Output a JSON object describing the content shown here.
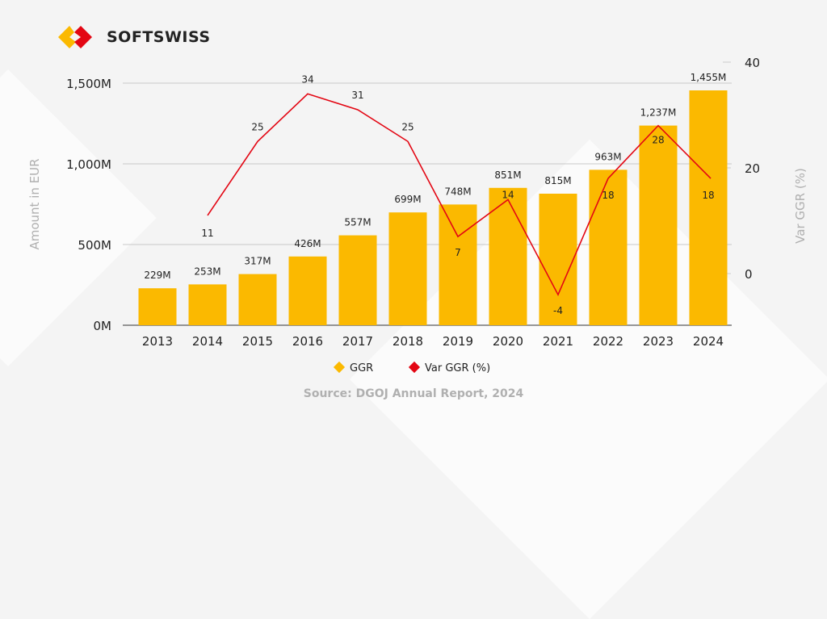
{
  "brand": {
    "name": "SOFTSWISS"
  },
  "colors": {
    "bar": "#FBB900",
    "line": "#E30613",
    "grid": "#c8c8c8",
    "axis_title": "#b0b0b0",
    "source": "#b0b0b0"
  },
  "chart_data": {
    "type": "bar+line",
    "categories": [
      "2013",
      "2014",
      "2015",
      "2016",
      "2017",
      "2018",
      "2019",
      "2020",
      "2021",
      "2022",
      "2023",
      "2024"
    ],
    "series": [
      {
        "name": "GGR",
        "type": "bar",
        "axis": "left",
        "values": [
          229,
          253,
          317,
          426,
          557,
          699,
          748,
          851,
          815,
          963,
          1237,
          1455
        ],
        "labels": [
          "229M",
          "253M",
          "317M",
          "426M",
          "557M",
          "699M",
          "748M",
          "851M",
          "815M",
          "963M",
          "1,237M",
          "1,455M"
        ]
      },
      {
        "name": "Var GGR (%)",
        "type": "line",
        "axis": "right",
        "values": [
          null,
          11,
          25,
          34,
          31,
          25,
          7,
          14,
          -4,
          18,
          28,
          18
        ],
        "labels": [
          "",
          "11",
          "25",
          "34",
          "31",
          "25",
          "7",
          "14",
          "-4",
          "18",
          "28",
          "18"
        ]
      }
    ],
    "ylabel_left": "Amount in EUR",
    "ylabel_right": "Var GGR (%)",
    "ylim_left": [
      0,
      1500
    ],
    "yticks_left": [
      "0M",
      "500M",
      "1,000M",
      "1,500M"
    ],
    "ylim_right": [
      -10,
      40
    ],
    "yticks_right": [
      "0",
      "20",
      "40"
    ],
    "grid": true,
    "legend_position": "bottom",
    "source": "Source: DGOJ Annual Report, 2024"
  }
}
